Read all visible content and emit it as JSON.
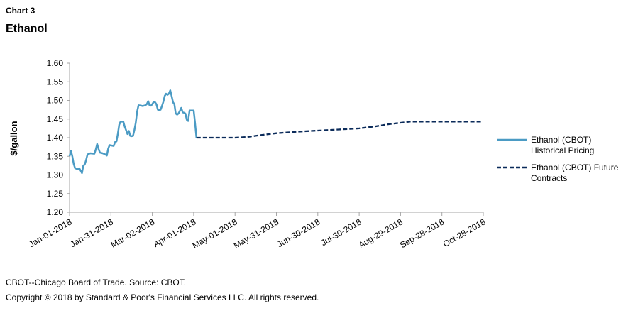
{
  "header": {
    "chart_label": "Chart 3",
    "title": "Ethanol"
  },
  "footer": {
    "source": "CBOT--Chicago Board of Trade. Source: CBOT.",
    "copyright": "Copyright © 2018 by Standard & Poor's Financial Services LLC. All rights reserved."
  },
  "colors": {
    "historical": "#4b9bc4",
    "futures": "#0b2b5a",
    "axis": "#a6a6a6"
  },
  "chart_data": {
    "type": "line",
    "title": "Ethanol",
    "ylabel": "$/gallon",
    "xlabel": "",
    "ylim": [
      1.2,
      1.6
    ],
    "yticks": [
      1.2,
      1.25,
      1.3,
      1.35,
      1.4,
      1.45,
      1.5,
      1.55,
      1.6
    ],
    "ytick_labels": [
      "1.20",
      "1.25",
      "1.30",
      "1.35",
      "1.40",
      "1.45",
      "1.50",
      "1.55",
      "1.60"
    ],
    "xlim": [
      "2018-01-01",
      "2018-10-28"
    ],
    "xticks": [
      "2018-01-01",
      "2018-01-31",
      "2018-03-02",
      "2018-04-01",
      "2018-05-01",
      "2018-05-31",
      "2018-06-30",
      "2018-07-30",
      "2018-08-29",
      "2018-09-28",
      "2018-10-28"
    ],
    "xtick_labels": [
      "Jan-01-2018",
      "Jan-31-2018",
      "Mar-02-2018",
      "Apr-01-2018",
      "May-01-2018",
      "May-31-2018",
      "Jun-30-2018",
      "Jul-30-2018",
      "Aug-29-2018",
      "Sep-28-2018",
      "Oct-28-2018"
    ],
    "grid": false,
    "legend_position": "right",
    "series": [
      {
        "name": "Ethanol (CBOT) Historical Pricing",
        "style": "solid",
        "points": [
          [
            "2018-01-01",
            1.35
          ],
          [
            "2018-01-02",
            1.365
          ],
          [
            "2018-01-03",
            1.35
          ],
          [
            "2018-01-04",
            1.33
          ],
          [
            "2018-01-05",
            1.318
          ],
          [
            "2018-01-07",
            1.315
          ],
          [
            "2018-01-08",
            1.318
          ],
          [
            "2018-01-09",
            1.312
          ],
          [
            "2018-01-10",
            1.305
          ],
          [
            "2018-01-11",
            1.325
          ],
          [
            "2018-01-12",
            1.328
          ],
          [
            "2018-01-13",
            1.34
          ],
          [
            "2018-01-14",
            1.355
          ],
          [
            "2018-01-16",
            1.358
          ],
          [
            "2018-01-19",
            1.357
          ],
          [
            "2018-01-20",
            1.368
          ],
          [
            "2018-01-21",
            1.383
          ],
          [
            "2018-01-22",
            1.37
          ],
          [
            "2018-01-23",
            1.36
          ],
          [
            "2018-01-25",
            1.358
          ],
          [
            "2018-01-27",
            1.355
          ],
          [
            "2018-01-28",
            1.352
          ],
          [
            "2018-01-29",
            1.37
          ],
          [
            "2018-01-30",
            1.38
          ],
          [
            "2018-02-02",
            1.378
          ],
          [
            "2018-02-03",
            1.388
          ],
          [
            "2018-02-04",
            1.39
          ],
          [
            "2018-02-05",
            1.41
          ],
          [
            "2018-02-06",
            1.435
          ],
          [
            "2018-02-07",
            1.443
          ],
          [
            "2018-02-09",
            1.443
          ],
          [
            "2018-02-10",
            1.43
          ],
          [
            "2018-02-11",
            1.42
          ],
          [
            "2018-02-12",
            1.41
          ],
          [
            "2018-02-13",
            1.418
          ],
          [
            "2018-02-14",
            1.405
          ],
          [
            "2018-02-15",
            1.404
          ],
          [
            "2018-02-16",
            1.405
          ],
          [
            "2018-02-17",
            1.42
          ],
          [
            "2018-02-18",
            1.44
          ],
          [
            "2018-02-19",
            1.47
          ],
          [
            "2018-02-20",
            1.487
          ],
          [
            "2018-02-22",
            1.486
          ],
          [
            "2018-02-23",
            1.485
          ],
          [
            "2018-02-25",
            1.487
          ],
          [
            "2018-02-26",
            1.49
          ],
          [
            "2018-02-27",
            1.498
          ],
          [
            "2018-02-28",
            1.487
          ],
          [
            "2018-03-01",
            1.486
          ],
          [
            "2018-03-02",
            1.49
          ],
          [
            "2018-03-03",
            1.496
          ],
          [
            "2018-03-04",
            1.495
          ],
          [
            "2018-03-05",
            1.49
          ],
          [
            "2018-03-06",
            1.475
          ],
          [
            "2018-03-07",
            1.474
          ],
          [
            "2018-03-08",
            1.475
          ],
          [
            "2018-03-09",
            1.485
          ],
          [
            "2018-03-10",
            1.496
          ],
          [
            "2018-03-11",
            1.512
          ],
          [
            "2018-03-12",
            1.518
          ],
          [
            "2018-03-13",
            1.515
          ],
          [
            "2018-03-14",
            1.518
          ],
          [
            "2018-03-15",
            1.527
          ],
          [
            "2018-03-16",
            1.512
          ],
          [
            "2018-03-17",
            1.495
          ],
          [
            "2018-03-18",
            1.49
          ],
          [
            "2018-03-19",
            1.465
          ],
          [
            "2018-03-20",
            1.462
          ],
          [
            "2018-03-21",
            1.465
          ],
          [
            "2018-03-22",
            1.472
          ],
          [
            "2018-03-23",
            1.48
          ],
          [
            "2018-03-24",
            1.468
          ],
          [
            "2018-03-25",
            1.467
          ],
          [
            "2018-03-26",
            1.465
          ],
          [
            "2018-03-27",
            1.448
          ],
          [
            "2018-03-28",
            1.445
          ],
          [
            "2018-03-29",
            1.473
          ],
          [
            "2018-04-01",
            1.473
          ],
          [
            "2018-04-02",
            1.44
          ],
          [
            "2018-04-03",
            1.4
          ]
        ]
      },
      {
        "name": "Ethanol (CBOT) Future Contracts",
        "style": "dashed",
        "points": [
          [
            "2018-04-03",
            1.4
          ],
          [
            "2018-04-15",
            1.4
          ],
          [
            "2018-05-01",
            1.4
          ],
          [
            "2018-05-10",
            1.402
          ],
          [
            "2018-05-20",
            1.407
          ],
          [
            "2018-05-31",
            1.412
          ],
          [
            "2018-06-15",
            1.416
          ],
          [
            "2018-06-30",
            1.419
          ],
          [
            "2018-07-15",
            1.422
          ],
          [
            "2018-07-30",
            1.425
          ],
          [
            "2018-08-10",
            1.43
          ],
          [
            "2018-08-20",
            1.436
          ],
          [
            "2018-08-29",
            1.44
          ],
          [
            "2018-09-05",
            1.443
          ],
          [
            "2018-09-28",
            1.443
          ],
          [
            "2018-10-28",
            1.443
          ]
        ]
      }
    ]
  }
}
